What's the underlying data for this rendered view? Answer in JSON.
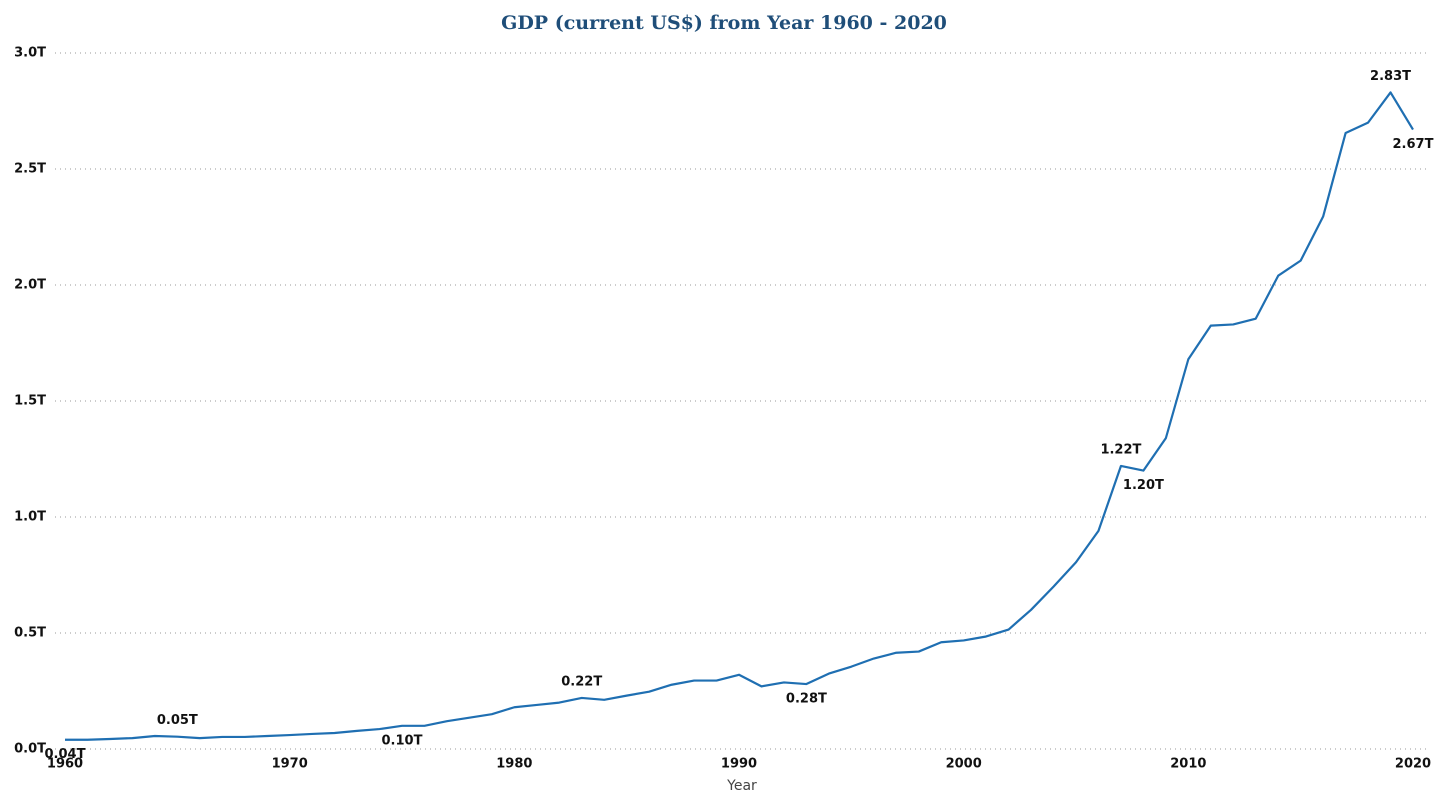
{
  "chart_data": {
    "type": "line",
    "title": "GDP (current US$) from Year 1960 - 2020",
    "x_label": "Year",
    "x": [
      1960,
      1961,
      1962,
      1963,
      1964,
      1965,
      1966,
      1967,
      1968,
      1969,
      1970,
      1971,
      1972,
      1973,
      1974,
      1975,
      1976,
      1977,
      1978,
      1979,
      1980,
      1981,
      1982,
      1983,
      1984,
      1985,
      1986,
      1987,
      1988,
      1989,
      1990,
      1991,
      1992,
      1993,
      1994,
      1995,
      1996,
      1997,
      1998,
      1999,
      2000,
      2001,
      2002,
      2003,
      2004,
      2005,
      2006,
      2007,
      2008,
      2009,
      2010,
      2011,
      2012,
      2013,
      2014,
      2015,
      2016,
      2017,
      2018,
      2019,
      2020
    ],
    "values": [
      0.04,
      0.04,
      0.043,
      0.047,
      0.056,
      0.053,
      0.047,
      0.052,
      0.052,
      0.056,
      0.06,
      0.065,
      0.069,
      0.078,
      0.086,
      0.1,
      0.1,
      0.12,
      0.135,
      0.15,
      0.18,
      0.19,
      0.2,
      0.22,
      0.212,
      0.23,
      0.247,
      0.277,
      0.295,
      0.295,
      0.32,
      0.27,
      0.287,
      0.28,
      0.325,
      0.355,
      0.39,
      0.415,
      0.42,
      0.46,
      0.468,
      0.485,
      0.515,
      0.6,
      0.7,
      0.805,
      0.94,
      1.22,
      1.2,
      1.34,
      1.68,
      1.825,
      1.83,
      1.855,
      2.04,
      2.105,
      2.295,
      2.655,
      2.7,
      2.83,
      2.67
    ],
    "value_labels": [
      "0.04T",
      null,
      null,
      null,
      null,
      "0.05T",
      null,
      null,
      null,
      null,
      null,
      null,
      null,
      null,
      null,
      "0.10T",
      null,
      null,
      null,
      null,
      null,
      null,
      null,
      "0.22T",
      null,
      null,
      null,
      null,
      null,
      null,
      null,
      null,
      null,
      "0.28T",
      null,
      null,
      null,
      null,
      null,
      null,
      null,
      null,
      null,
      null,
      null,
      null,
      null,
      "1.22T",
      "1.20T",
      null,
      null,
      null,
      null,
      null,
      null,
      null,
      null,
      null,
      null,
      "2.83T",
      "2.67T"
    ],
    "color": "#1f6fb2",
    "xlim": [
      1960,
      2020
    ],
    "xticks": [
      1960,
      1970,
      1980,
      1990,
      2000,
      2010,
      2020
    ],
    "ylim": [
      0,
      3
    ],
    "yticks": [
      {
        "value": 0,
        "label": "0.0T"
      },
      {
        "value": 0.5,
        "label": "0.5T"
      },
      {
        "value": 1,
        "label": "1.0T"
      },
      {
        "value": 1.5,
        "label": "1.5T"
      },
      {
        "value": 2,
        "label": "2.0T"
      },
      {
        "value": 2.5,
        "label": "2.5T"
      },
      {
        "value": 3,
        "label": "3.0T"
      }
    ],
    "grid": true
  }
}
